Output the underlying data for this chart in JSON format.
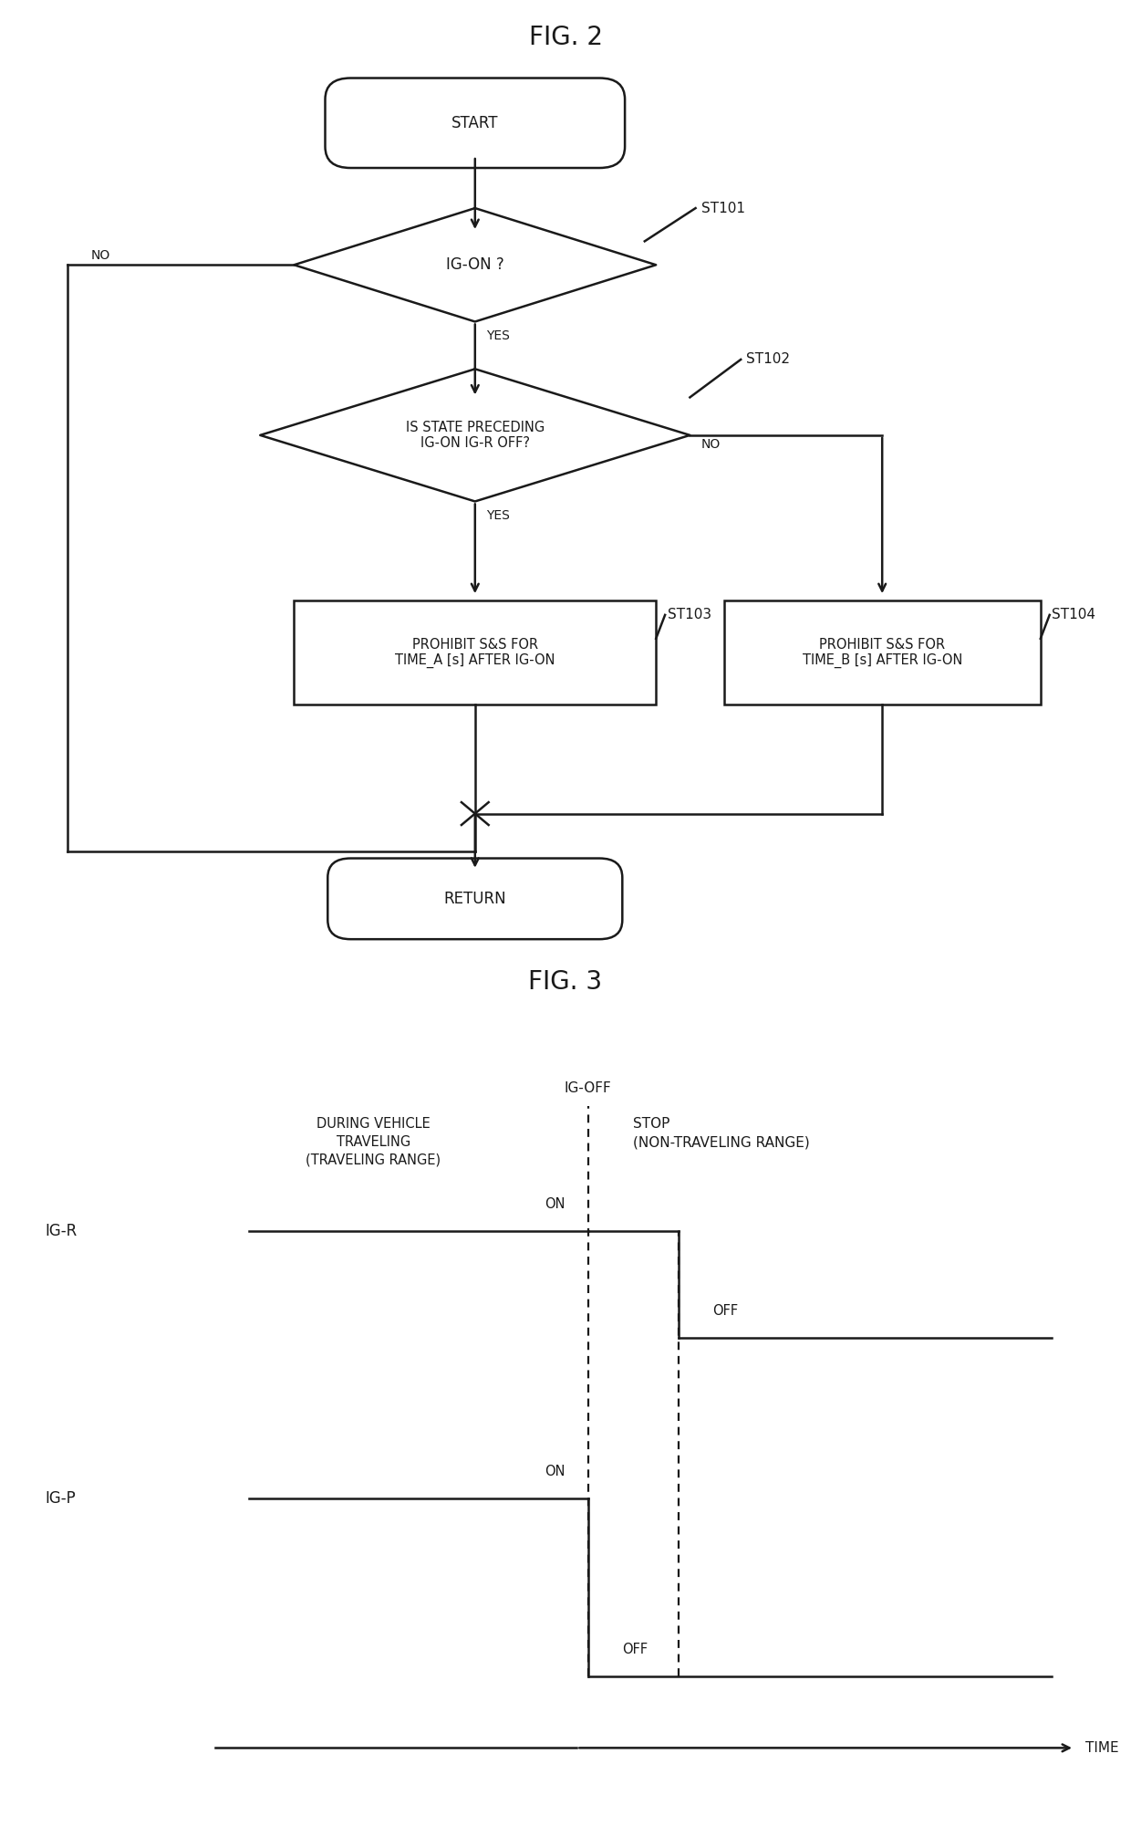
{
  "fig2_title": "FIG. 2",
  "fig3_title": "FIG. 3",
  "bg_color": "#ffffff",
  "line_color": "#1a1a1a",
  "text_color": "#1a1a1a",
  "flowchart": {
    "start_text": "START",
    "return_text": "RETURN",
    "diamond1_text": "IG-ON ?",
    "diamond1_label": "ST101",
    "diamond2_text": "IS STATE PRECEDING\nIG-ON IG-R OFF?",
    "diamond2_label": "ST102",
    "box1_text": "PROHIBIT S&S FOR\nTIME_A [s] AFTER IG-ON",
    "box1_label": "ST103",
    "box2_text": "PROHIBIT S&S FOR\nTIME_B [s] AFTER IG-ON",
    "box2_label": "ST104",
    "yes_label": "YES",
    "no_label": "NO"
  },
  "timing": {
    "ig_off_label": "IG-OFF",
    "stop_label": "STOP\n(NON-TRAVELING RANGE)",
    "during_label": "DURING VEHICLE\nTRAVELING\n(TRAVELING RANGE)",
    "igr_label": "IG-R",
    "igp_label": "IG-P",
    "on_label": "ON",
    "off_label": "OFF",
    "time_label": "TIME"
  }
}
